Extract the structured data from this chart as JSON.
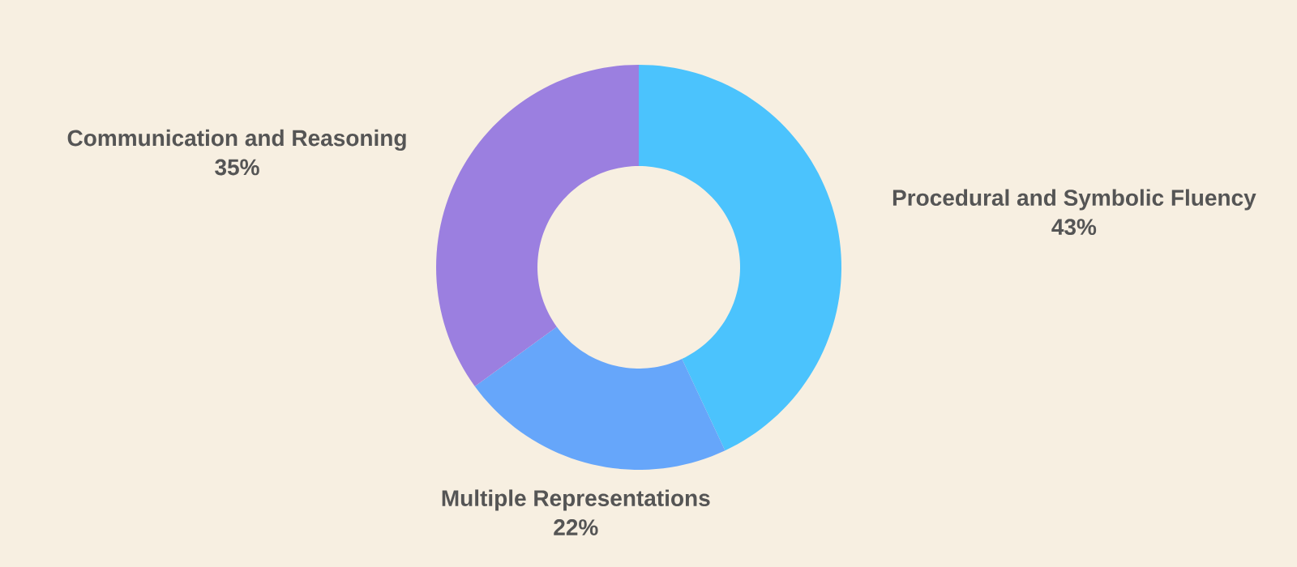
{
  "chart_data": {
    "type": "donut",
    "categories": [
      "Procedural and Symbolic Fluency",
      "Multiple Representations",
      "Communication and Reasoning"
    ],
    "values": [
      43,
      22,
      35
    ],
    "value_labels": [
      "43%",
      "22%",
      "35%"
    ],
    "colors": [
      "#4bc3fd",
      "#66a6fa",
      "#9b7fe0"
    ]
  }
}
